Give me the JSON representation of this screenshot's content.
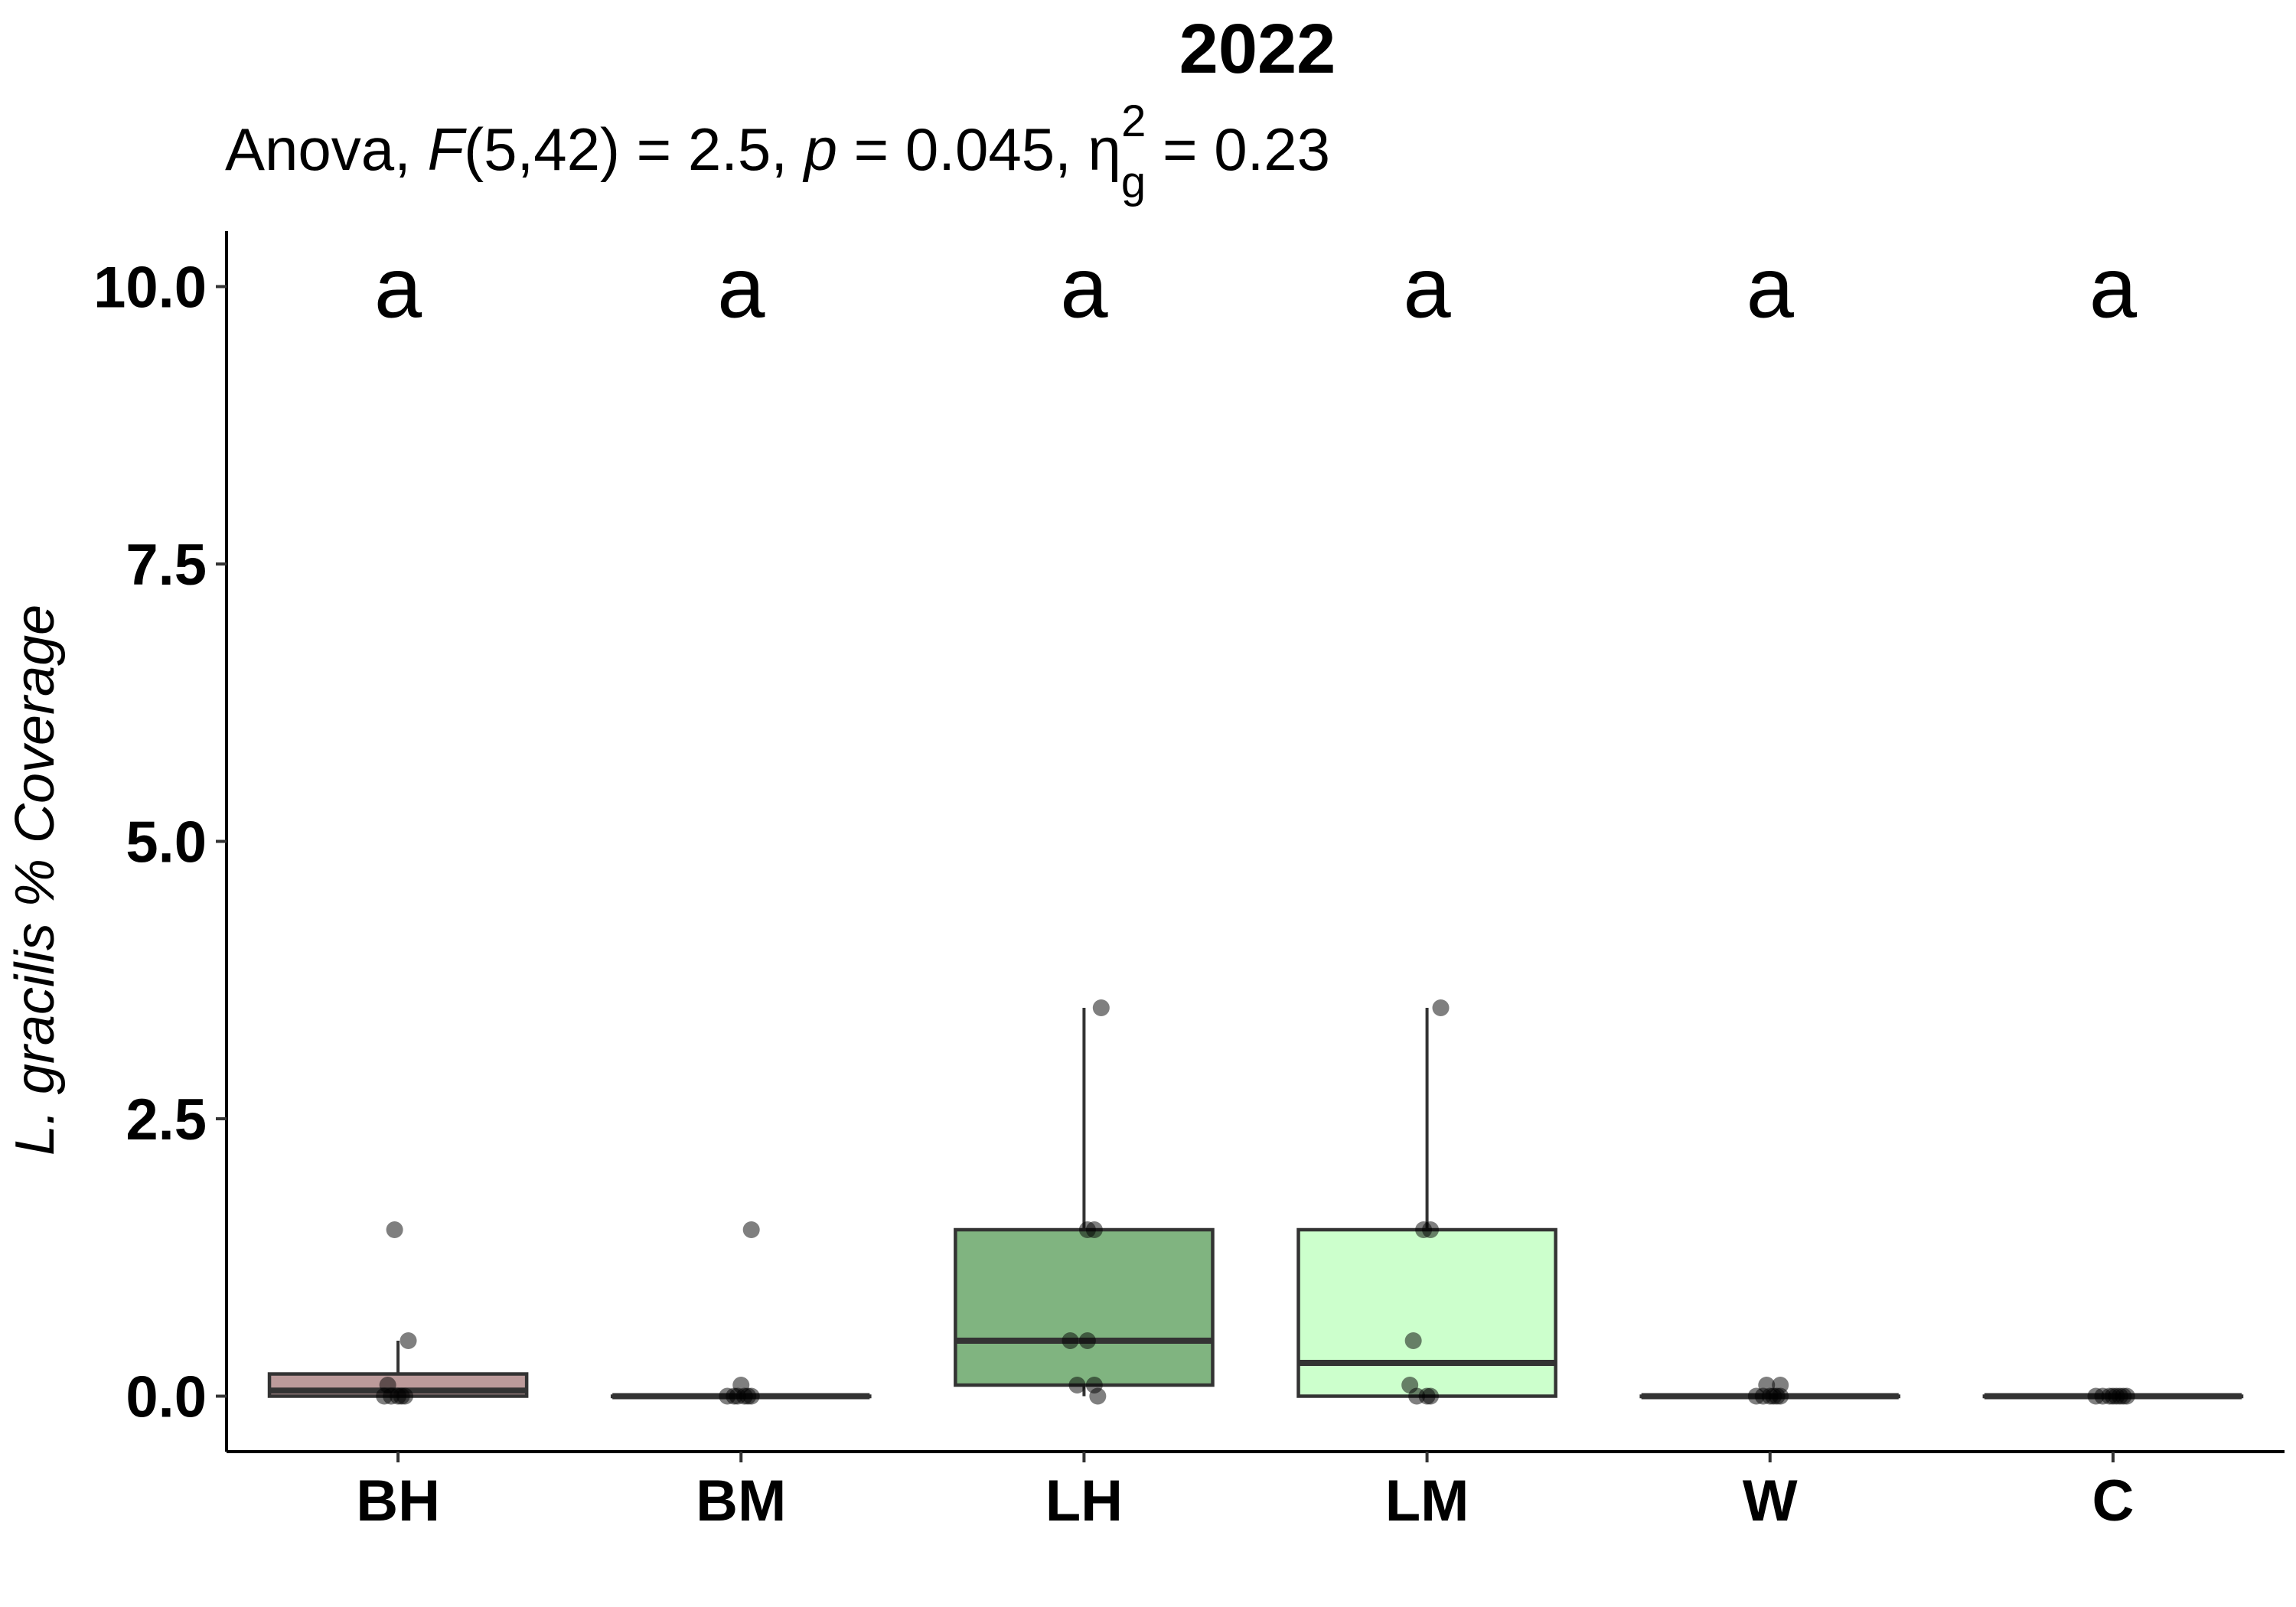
{
  "chart_data": {
    "type": "box",
    "title": "2022",
    "subtitle": {
      "prefix": "Anova, ",
      "f_symbol": "F",
      "df": "(5,42) = 2.5, ",
      "p_symbol": "p",
      "p_value": " = 0.045, ",
      "eta": "η",
      "eta_sub": "g",
      "eta_sup": "2",
      "eta_value": " = 0.23"
    },
    "xlabel": "",
    "ylabel_italic": "L. gracilis",
    "ylabel_rest": " % Coverage",
    "ylim": [
      -0.5,
      10.5
    ],
    "yticks": [
      0.0,
      2.5,
      5.0,
      7.5,
      10.0
    ],
    "ytick_labels": [
      "0.0",
      "2.5",
      "5.0",
      "7.5",
      "10.0"
    ],
    "grid": false,
    "legend": "none",
    "categories": [
      "BH",
      "BM",
      "LH",
      "LM",
      "W",
      "C"
    ],
    "significance_letters": [
      "a",
      "a",
      "a",
      "a",
      "a",
      "a"
    ],
    "significance_y": 10.0,
    "boxes": [
      {
        "category": "BH",
        "color": "#bc9a9a",
        "q1": 0.0,
        "median": 0.05,
        "q3": 0.2,
        "whisker_low": 0.0,
        "whisker_high": 0.5
      },
      {
        "category": "BM",
        "color": "#b8a4a4",
        "q1": 0.0,
        "median": 0.0,
        "q3": 0.0,
        "whisker_low": 0.0,
        "whisker_high": 0.0
      },
      {
        "category": "LH",
        "color": "#80b480",
        "q1": 0.1,
        "median": 0.5,
        "q3": 1.5,
        "whisker_low": 0.0,
        "whisker_high": 3.5
      },
      {
        "category": "LM",
        "color": "#ccffcc",
        "q1": 0.0,
        "median": 0.3,
        "q3": 1.5,
        "whisker_low": 0.0,
        "whisker_high": 3.5
      },
      {
        "category": "W",
        "color": "#e0e0e0",
        "q1": 0.0,
        "median": 0.0,
        "q3": 0.0,
        "whisker_low": 0.0,
        "whisker_high": 0.0
      },
      {
        "category": "C",
        "color": "#e0e0e0",
        "q1": 0.0,
        "median": 0.0,
        "q3": 0.0,
        "whisker_low": 0.0,
        "whisker_high": 0.0
      }
    ],
    "points": [
      {
        "category": "BH",
        "values": [
          1.5,
          0.5,
          0.1,
          0.0,
          0.0,
          0.0,
          0.0,
          0.0
        ],
        "jitter": [
          -0.01,
          0.03,
          -0.03,
          -0.02,
          0.0,
          0.02,
          0.01,
          -0.04
        ]
      },
      {
        "category": "BM",
        "values": [
          1.5,
          0.1,
          0.0,
          0.0,
          0.0,
          0.0,
          0.0,
          0.0
        ],
        "jitter": [
          0.03,
          0.0,
          -0.04,
          -0.02,
          0.01,
          0.03,
          -0.01,
          0.02
        ]
      },
      {
        "category": "LH",
        "values": [
          3.5,
          1.5,
          1.5,
          0.5,
          0.5,
          0.1,
          0.1,
          0.0
        ],
        "jitter": [
          0.05,
          0.01,
          0.03,
          -0.04,
          0.01,
          -0.02,
          0.03,
          0.04
        ]
      },
      {
        "category": "LM",
        "values": [
          3.5,
          1.5,
          1.5,
          0.5,
          0.1,
          0.0,
          0.0,
          0.0
        ],
        "jitter": [
          0.04,
          -0.01,
          0.01,
          -0.04,
          -0.05,
          -0.03,
          0.0,
          0.01
        ]
      },
      {
        "category": "W",
        "values": [
          0.1,
          0.1,
          0.0,
          0.0,
          0.0,
          0.0,
          0.0,
          0.0
        ],
        "jitter": [
          -0.01,
          0.03,
          -0.04,
          -0.02,
          0.0,
          0.01,
          0.03,
          0.02
        ]
      },
      {
        "category": "C",
        "values": [
          0.0,
          0.0,
          0.0,
          0.0,
          0.0,
          0.0,
          0.0,
          0.0
        ],
        "jitter": [
          -0.05,
          -0.03,
          -0.01,
          0.0,
          0.01,
          0.02,
          0.03,
          0.04
        ]
      }
    ]
  }
}
